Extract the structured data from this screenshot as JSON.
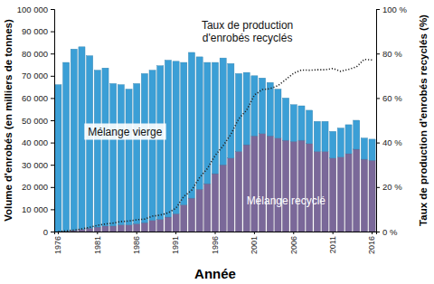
{
  "chart_data": {
    "type": "bar",
    "stacked": true,
    "x_label": "Année",
    "y_label": "Volume d'enrobés (en milliers de tonnes)",
    "y2_label": "Taux de production d'enrobés recyclés (%)",
    "categories": [
      "1976",
      null,
      null,
      null,
      null,
      "1981",
      null,
      null,
      null,
      null,
      "1986",
      null,
      null,
      null,
      null,
      "1991",
      null,
      null,
      null,
      null,
      "1996",
      null,
      null,
      null,
      null,
      "2001",
      null,
      null,
      null,
      null,
      "2006",
      null,
      null,
      null,
      null,
      "2011",
      null,
      null,
      null,
      null,
      "2016"
    ],
    "ylim": [
      0,
      100000
    ],
    "yticks": [
      0,
      {
        "value": 10000,
        "label": "10 000"
      },
      {
        "value": 20000,
        "label": "20 000"
      },
      {
        "value": 30000,
        "label": "30 000"
      },
      {
        "value": 40000,
        "label": "40 000"
      },
      {
        "value": 50000,
        "label": "50 000"
      },
      {
        "value": 60000,
        "label": "60 000"
      },
      {
        "value": 70000,
        "label": "70 000"
      },
      {
        "value": 80000,
        "label": "80 000"
      },
      {
        "value": 90000,
        "label": "90 000"
      },
      {
        "value": 100000,
        "label": "100 000"
      }
    ],
    "y2lim": [
      0,
      100
    ],
    "y2ticks": [
      {
        "value": 0,
        "label": "0 %"
      },
      {
        "value": 20,
        "label": "20 %"
      },
      {
        "value": 40,
        "label": "40 %"
      },
      {
        "value": 60,
        "label": "60 %"
      },
      {
        "value": 80,
        "label": "80 %"
      },
      {
        "value": 100,
        "label": "100 %"
      }
    ],
    "series": [
      {
        "name": "Mélange recyclé",
        "type": "bar",
        "color": "#7a6899",
        "values": [
          0,
          200,
          500,
          1000,
          1500,
          2000,
          2500,
          2500,
          3000,
          3000,
          3500,
          4000,
          5000,
          5500,
          6500,
          8000,
          12000,
          15000,
          19000,
          21500,
          26000,
          30000,
          33000,
          36000,
          39000,
          43000,
          44000,
          43000,
          42000,
          41000,
          40500,
          41000,
          39500,
          36000,
          36000,
          33000,
          33500,
          35000,
          37000,
          32500,
          32000
        ]
      },
      {
        "name": "Mélange vierge",
        "type": "bar",
        "color": "#3b9fd6",
        "values": [
          66000,
          75800,
          81500,
          82000,
          77500,
          70500,
          71000,
          64000,
          63000,
          61000,
          63000,
          67000,
          67500,
          69000,
          70500,
          68500,
          64000,
          65500,
          59500,
          54500,
          50000,
          48000,
          42500,
          35000,
          32500,
          27000,
          25000,
          24000,
          22000,
          19000,
          16500,
          15500,
          15000,
          13500,
          13500,
          12000,
          13000,
          13000,
          13000,
          9500,
          9500
        ]
      },
      {
        "name": "Taux de production d'enrobés recyclés",
        "type": "line",
        "axis": "y2",
        "color": "#222222",
        "line_style": "dotted",
        "values": [
          0,
          0.3,
          0.6,
          1.2,
          1.9,
          2.8,
          3.4,
          3.8,
          4.5,
          4.7,
          5.3,
          5.6,
          6.9,
          7.4,
          8.4,
          10.5,
          15.8,
          18.6,
          24.2,
          28.3,
          34.2,
          38.5,
          43.7,
          50.7,
          54.5,
          61.4,
          63.8,
          64.2,
          65.6,
          68.3,
          71.1,
          72.6,
          72.5,
          72.7,
          72.7,
          73.3,
          72,
          72.9,
          74,
          77.4,
          77.1
        ]
      }
    ]
  }
}
